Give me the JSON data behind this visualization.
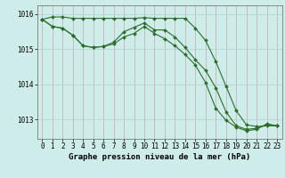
{
  "line1": {
    "x": [
      0,
      1,
      2,
      3,
      4,
      5,
      6,
      7,
      8,
      9,
      10,
      11,
      12,
      13,
      14,
      15,
      16,
      17,
      18,
      19,
      20,
      21,
      22,
      23
    ],
    "y": [
      1015.85,
      1015.92,
      1015.92,
      1015.88,
      1015.88,
      1015.88,
      1015.88,
      1015.88,
      1015.88,
      1015.88,
      1015.9,
      1015.88,
      1015.88,
      1015.88,
      1015.88,
      1015.6,
      1015.25,
      1014.65,
      1013.95,
      1013.25,
      1012.85,
      1012.8,
      1012.82,
      1012.82
    ]
  },
  "line2": {
    "x": [
      0,
      1,
      2,
      3,
      4,
      5,
      6,
      7,
      8,
      9,
      10,
      11,
      12,
      13,
      14,
      15,
      16,
      17,
      18,
      19,
      20,
      21,
      22,
      23
    ],
    "y": [
      1015.85,
      1015.65,
      1015.6,
      1015.4,
      1015.1,
      1015.05,
      1015.08,
      1015.2,
      1015.5,
      1015.62,
      1015.75,
      1015.55,
      1015.55,
      1015.35,
      1015.05,
      1014.7,
      1014.4,
      1013.9,
      1013.22,
      1012.82,
      1012.72,
      1012.75,
      1012.85,
      1012.82
    ]
  },
  "line3": {
    "x": [
      0,
      1,
      2,
      3,
      4,
      5,
      6,
      7,
      8,
      9,
      10,
      11,
      12,
      13,
      14,
      15,
      16,
      17,
      18,
      19,
      20,
      21,
      22,
      23
    ],
    "y": [
      1015.85,
      1015.65,
      1015.6,
      1015.4,
      1015.1,
      1015.05,
      1015.08,
      1015.15,
      1015.35,
      1015.45,
      1015.65,
      1015.45,
      1015.3,
      1015.1,
      1014.85,
      1014.55,
      1014.05,
      1013.32,
      1012.98,
      1012.78,
      1012.68,
      1012.72,
      1012.88,
      1012.82
    ]
  },
  "line_color": "#2a6e2a",
  "bg_color": "#ceecea",
  "grid_color_v": "#b8d8d5",
  "grid_color_h": "#d4b8b8",
  "ylabel_ticks": [
    1013,
    1014,
    1015,
    1016
  ],
  "xlabel": "Graphe pression niveau de la mer (hPa)",
  "xlim": [
    -0.5,
    23.5
  ],
  "ylim": [
    1012.45,
    1016.25
  ],
  "marker": "D",
  "markersize": 2.0,
  "linewidth": 0.8,
  "xlabel_fontsize": 6.5,
  "tick_fontsize": 5.5,
  "xticks": [
    0,
    1,
    2,
    3,
    4,
    5,
    6,
    7,
    8,
    9,
    10,
    11,
    12,
    13,
    14,
    15,
    16,
    17,
    18,
    19,
    20,
    21,
    22,
    23
  ]
}
